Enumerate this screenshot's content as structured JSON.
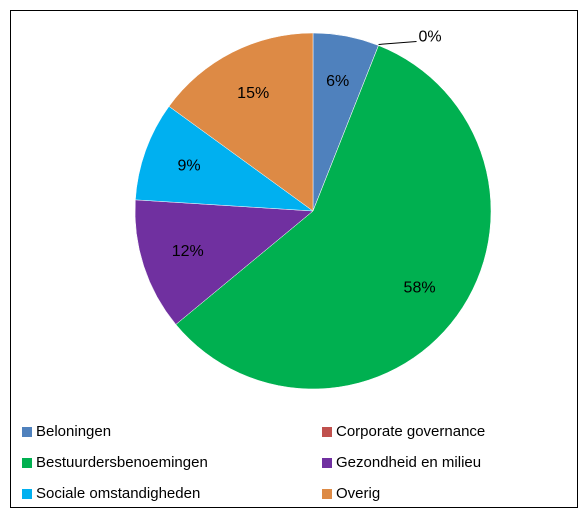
{
  "chart_data": {
    "type": "pie",
    "categories": [
      "Beloningen",
      "Corporate governance",
      "Bestuurdersbenoemingen",
      "Gezondheid en milieu",
      "Sociale omstandigheden",
      "Overig"
    ],
    "values": [
      6,
      0,
      58,
      12,
      9,
      15
    ],
    "value_labels": [
      "6%",
      "0%",
      "58%",
      "12%",
      "9%",
      "15%"
    ],
    "colors": [
      "#4f81bd",
      "#c0504d",
      "#00b050",
      "#7030a0",
      "#00b0f0",
      "#dd8a45"
    ],
    "legend": "bottom"
  }
}
